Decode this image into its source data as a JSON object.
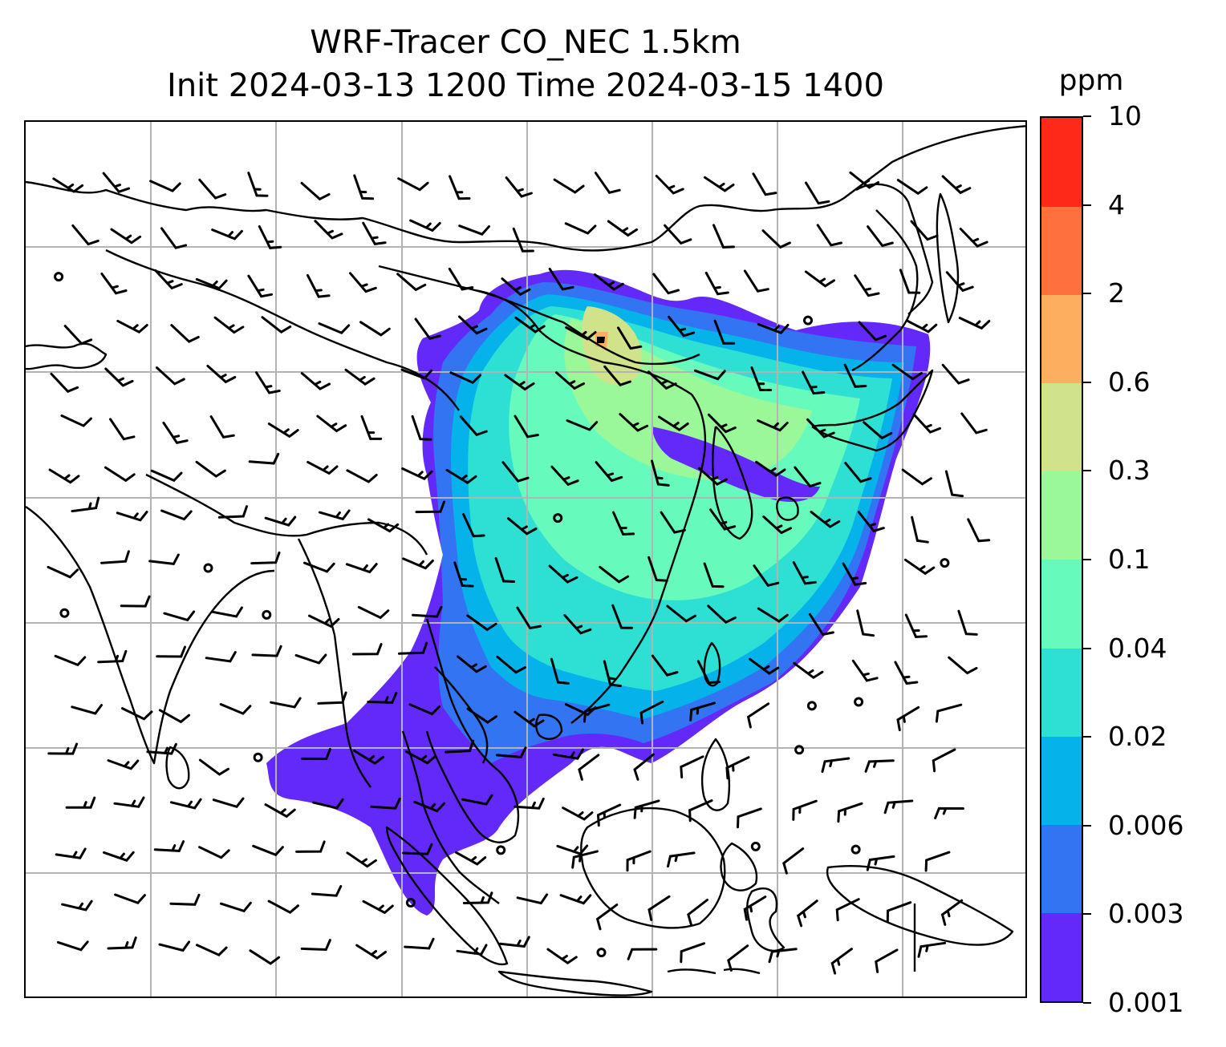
{
  "title": {
    "line1": "WRF-Tracer CO_NEC 1.5km",
    "line2": "Init 2024-03-13 1200 Time 2024-03-15 1400"
  },
  "colorbar": {
    "unit": "ppm",
    "levels": [
      "0.001",
      "0.003",
      "0.006",
      "0.02",
      "0.04",
      "0.1",
      "0.3",
      "0.6",
      "2",
      "4",
      "10"
    ],
    "colors": [
      "#6329f8",
      "#3374f2",
      "#05b2ea",
      "#2ee0d4",
      "#67fabd",
      "#9af899",
      "#d0e28a",
      "#feae5f",
      "#fe713d",
      "#fe2918"
    ]
  },
  "map": {
    "gridlines": "on",
    "features": [
      "coastlines",
      "country-borders",
      "wind-barbs",
      "calm-wind-circles",
      "co-tracer-shading"
    ],
    "colors": {
      "grid": "#b3b3b3",
      "coast": "#000000",
      "barb": "#000000"
    }
  }
}
